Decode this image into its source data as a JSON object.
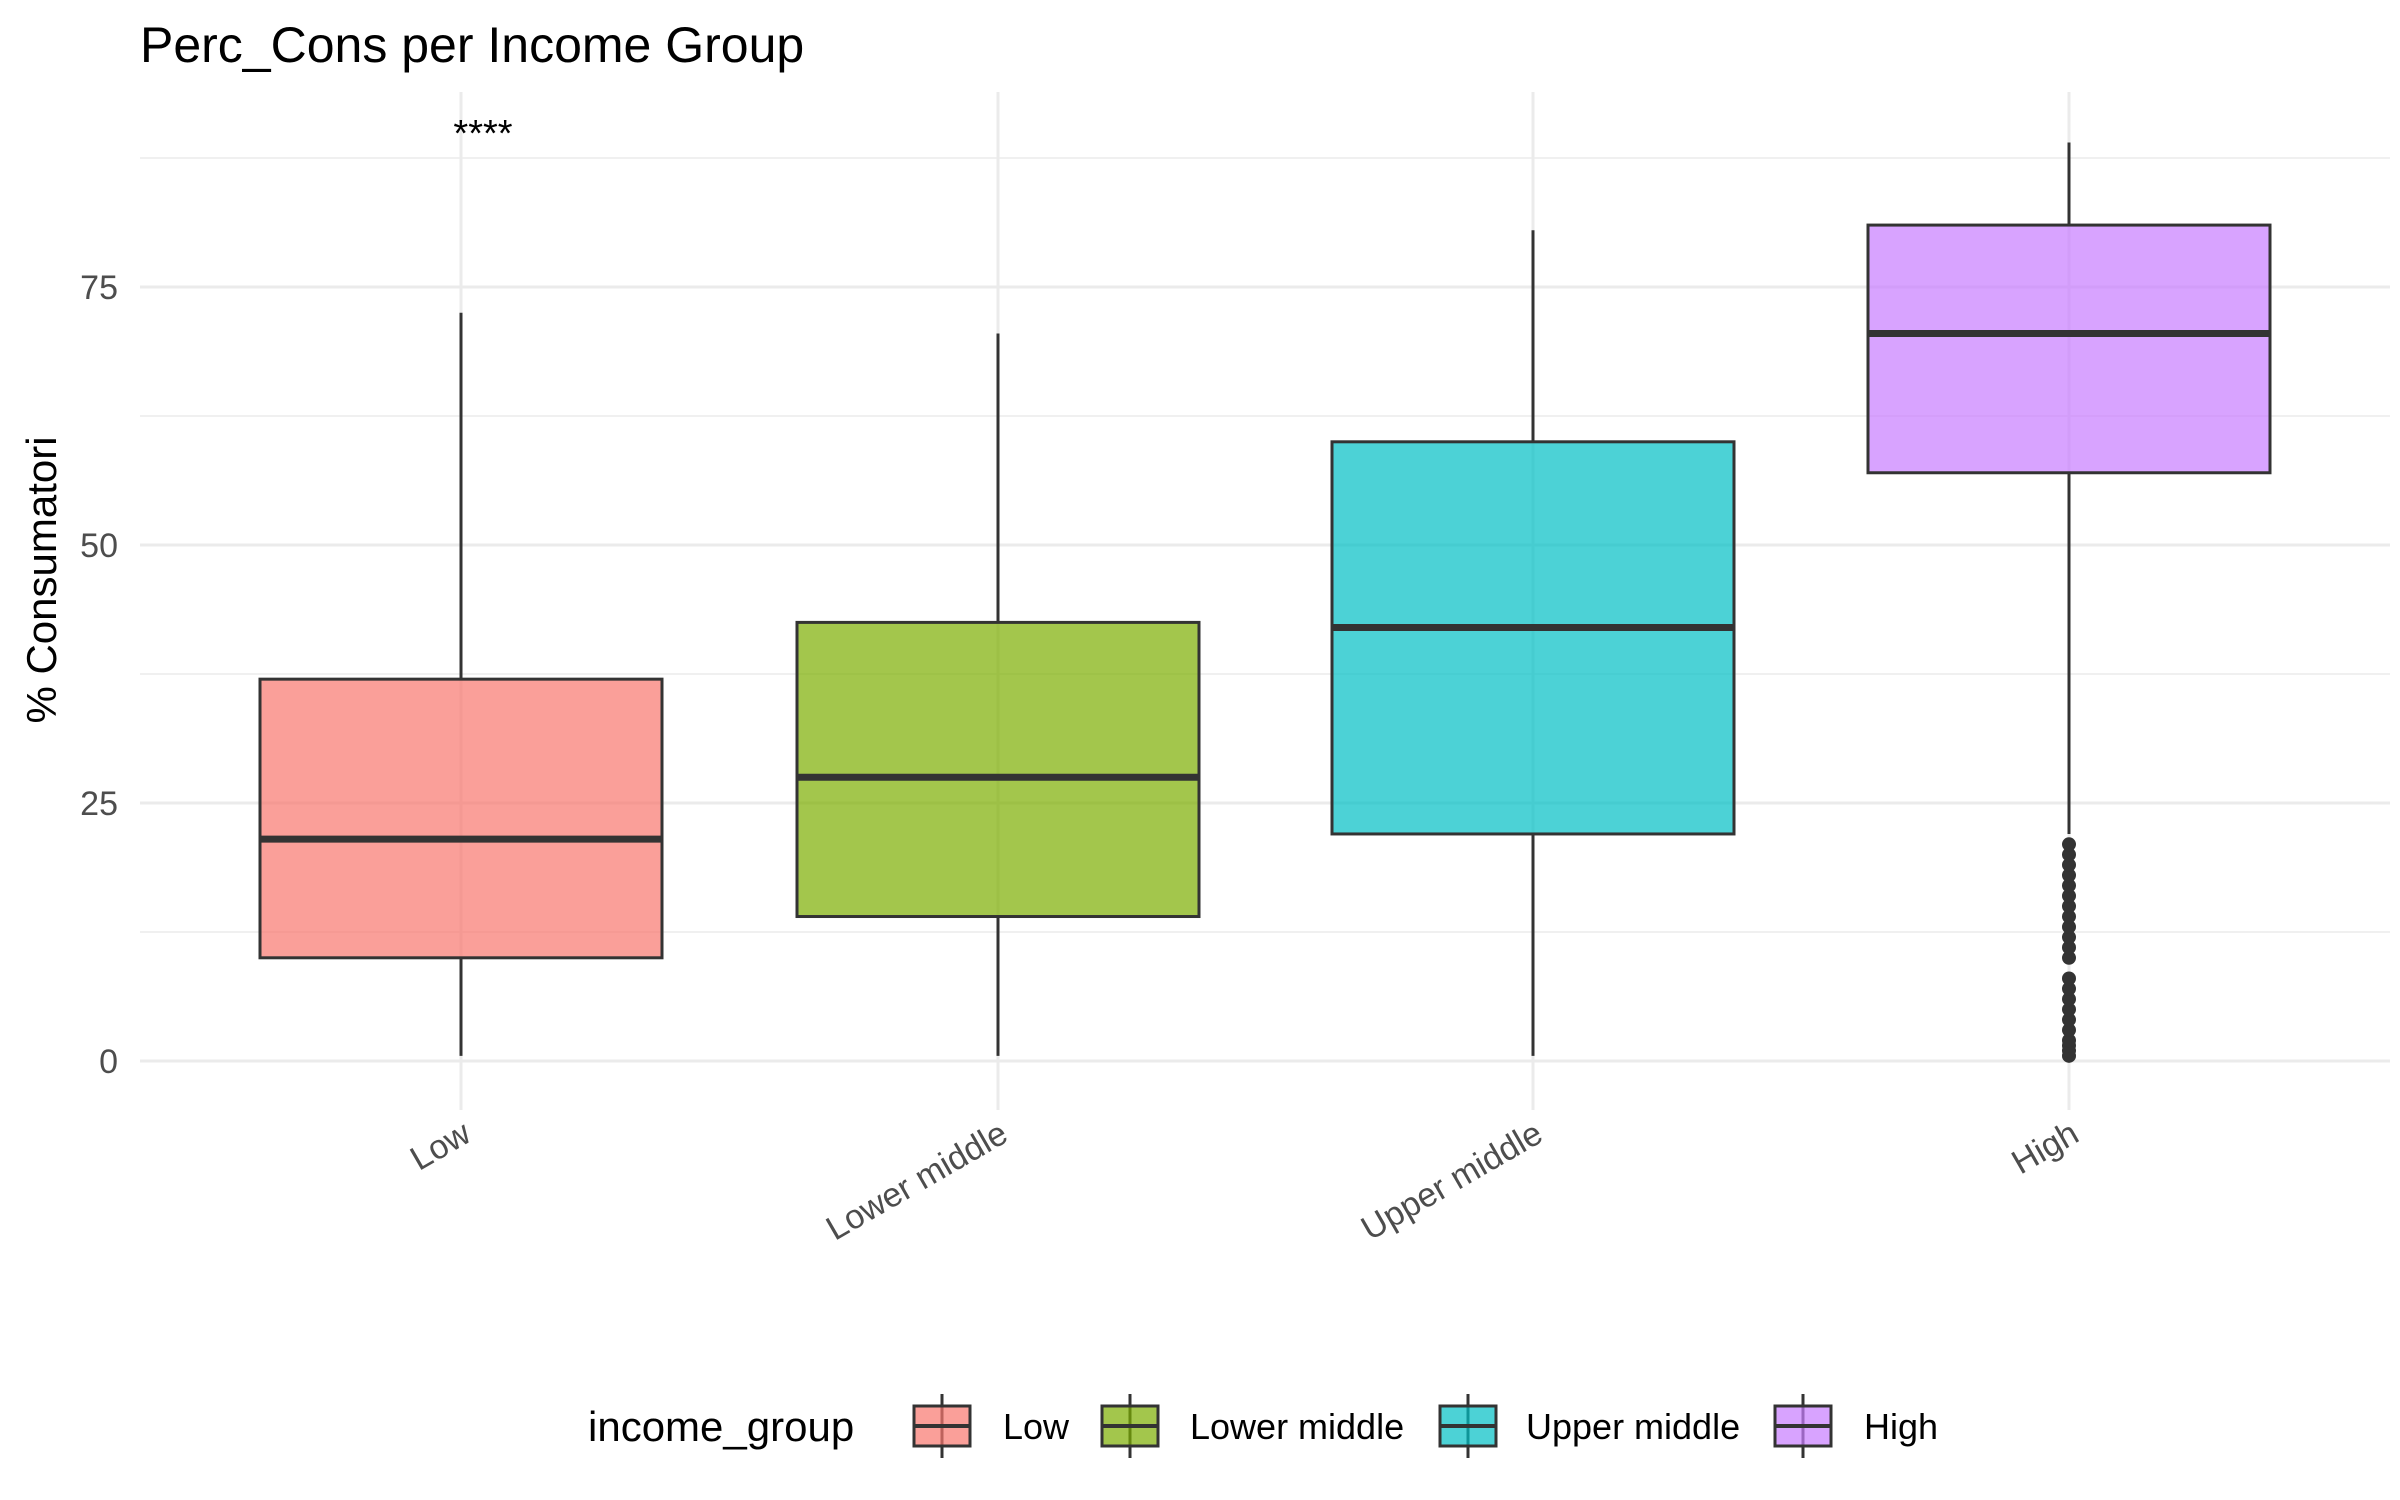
{
  "chart_data": {
    "type": "boxplot",
    "title": "Perc_Cons per Income Group",
    "xlabel": "",
    "ylabel": "% Consumatori",
    "ylim": [
      -2,
      93
    ],
    "yticks": [
      0,
      25,
      50,
      75
    ],
    "grid": true,
    "categories": [
      "Low",
      "Lower middle",
      "Upper middle",
      "High"
    ],
    "boxes": [
      {
        "category": "Low",
        "whisker_low": 0.5,
        "q1": 10,
        "median": 21.5,
        "q3": 37,
        "whisker_high": 72.5,
        "outliers": [],
        "color": "#F8766D"
      },
      {
        "category": "Lower middle",
        "whisker_low": 0.5,
        "q1": 14,
        "median": 27.5,
        "q3": 42.5,
        "whisker_high": 70.5,
        "outliers": [],
        "color": "#7CAE00"
      },
      {
        "category": "Upper middle",
        "whisker_low": 0.5,
        "q1": 22,
        "median": 42,
        "q3": 60,
        "whisker_high": 80.5,
        "outliers": [],
        "color": "#00BFC4"
      },
      {
        "category": "High",
        "whisker_low": 22,
        "q1": 57,
        "median": 70.5,
        "q3": 81,
        "whisker_high": 89,
        "outliers": [
          0.5,
          1,
          1.5,
          2,
          3,
          4,
          5,
          6,
          7,
          8,
          10,
          11,
          12,
          13,
          14,
          15,
          16,
          17,
          18,
          19,
          20,
          21
        ],
        "color": "#C77CFF"
      }
    ],
    "annotations": [
      {
        "text": "****",
        "category": "Low",
        "y": 91
      }
    ],
    "legend": {
      "title": "income_group",
      "position": "bottom",
      "items": [
        {
          "label": "Low",
          "color": "#F8766D"
        },
        {
          "label": "Lower middle",
          "color": "#7CAE00"
        },
        {
          "label": "Upper middle",
          "color": "#00BFC4"
        },
        {
          "label": "High",
          "color": "#C77CFF"
        }
      ]
    }
  }
}
